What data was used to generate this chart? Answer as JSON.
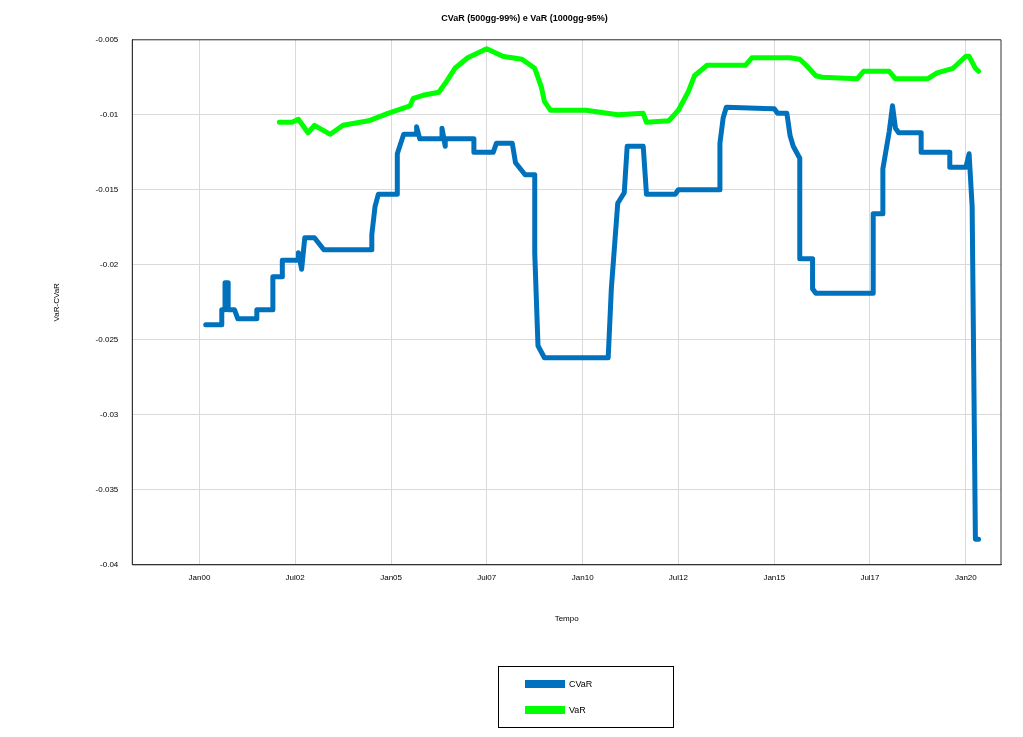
{
  "chart_data": {
    "type": "line",
    "title": "CVaR (500gg-99%) e VaR (1000gg-95%)",
    "xlabel": "Tempo",
    "ylabel": "VaR-CVaR",
    "xlim": [
      "1998-04",
      "2020-12"
    ],
    "xticks": [
      {
        "value": "2000-01",
        "label": "Jan00"
      },
      {
        "value": "2002-07",
        "label": "Jul02"
      },
      {
        "value": "2005-01",
        "label": "Jan05"
      },
      {
        "value": "2007-07",
        "label": "Jul07"
      },
      {
        "value": "2010-01",
        "label": "Jan10"
      },
      {
        "value": "2012-07",
        "label": "Jul12"
      },
      {
        "value": "2015-01",
        "label": "Jan15"
      },
      {
        "value": "2017-07",
        "label": "Jul17"
      },
      {
        "value": "2020-01",
        "label": "Jan20"
      }
    ],
    "ylim": [
      -0.04,
      -0.005
    ],
    "yticks": [
      -0.04,
      -0.035,
      -0.03,
      -0.025,
      -0.02,
      -0.015,
      -0.01,
      -0.005
    ],
    "grid": true,
    "legend": "bottom",
    "marker": "none",
    "line_style": "solid",
    "series": [
      {
        "name": "CVaR",
        "color": "#0072bd",
        "x": [
          "2000-03",
          "2000-08",
          "2000-08",
          "2000-09",
          "2000-09",
          "2000-10",
          "2000-10",
          "2000-12",
          "2001-01",
          "2001-07",
          "2001-07",
          "2001-12",
          "2001-12",
          "2002-03",
          "2002-03",
          "2002-08",
          "2002-08",
          "2002-09",
          "2002-10",
          "2003-01",
          "2003-04",
          "2003-05",
          "2004-07",
          "2004-07",
          "2004-08",
          "2004-09",
          "2005-03",
          "2005-03",
          "2005-05",
          "2005-09",
          "2005-09",
          "2005-10",
          "2006-05",
          "2006-05",
          "2006-06",
          "2006-06",
          "2007-03",
          "2007-03",
          "2007-09",
          "2007-10",
          "2008-03",
          "2008-04",
          "2008-07",
          "2008-10",
          "2008-10",
          "2008-11",
          "2009-01",
          "2010-09",
          "2010-10",
          "2010-12",
          "2011-02",
          "2011-03",
          "2011-08",
          "2011-09",
          "2012-06",
          "2012-07",
          "2013-08",
          "2013-08",
          "2013-09",
          "2013-10",
          "2015-01",
          "2015-02",
          "2015-05",
          "2015-06",
          "2015-07",
          "2015-09",
          "2015-09",
          "2016-01",
          "2016-01",
          "2016-02",
          "2017-08",
          "2017-08",
          "2017-11",
          "2017-11",
          "2018-01",
          "2018-02",
          "2018-03",
          "2018-04",
          "2018-11",
          "2018-11",
          "2019-08",
          "2019-08",
          "2020-01",
          "2020-02",
          "2020-03",
          "2020-04",
          "2020-05"
        ],
        "values": [
          -0.024,
          -0.024,
          -0.023,
          -0.023,
          -0.0212,
          -0.0212,
          -0.023,
          -0.023,
          -0.0236,
          -0.0236,
          -0.023,
          -0.023,
          -0.0208,
          -0.0208,
          -0.0197,
          -0.0197,
          -0.0192,
          -0.0203,
          -0.0182,
          -0.0182,
          -0.019,
          -0.019,
          -0.019,
          -0.018,
          -0.0161,
          -0.0153,
          -0.0153,
          -0.0126,
          -0.0113,
          -0.0113,
          -0.0108,
          -0.0116,
          -0.0116,
          -0.0109,
          -0.0121,
          -0.0116,
          -0.0116,
          -0.0125,
          -0.0125,
          -0.0119,
          -0.0119,
          -0.0132,
          -0.014,
          -0.014,
          -0.0192,
          -0.0254,
          -0.0262,
          -0.0262,
          -0.0216,
          -0.0159,
          -0.0152,
          -0.0121,
          -0.0121,
          -0.0153,
          -0.0153,
          -0.015,
          -0.015,
          -0.0119,
          -0.0102,
          -0.0095,
          -0.0096,
          -0.0099,
          -0.0099,
          -0.0114,
          -0.0121,
          -0.0129,
          -0.0196,
          -0.0196,
          -0.0216,
          -0.0219,
          -0.0219,
          -0.0166,
          -0.0166,
          -0.0136,
          -0.0111,
          -0.0094,
          -0.0109,
          -0.0112,
          -0.0112,
          -0.0125,
          -0.0125,
          -0.0135,
          -0.0135,
          -0.0126,
          -0.0161,
          -0.0383,
          -0.0383
        ]
      },
      {
        "name": "VaR",
        "color": "#00ff00",
        "x": [
          "2002-02",
          "2002-06",
          "2002-08",
          "2002-11",
          "2003-01",
          "2003-06",
          "2003-10",
          "2004-06",
          "2004-12",
          "2005-07",
          "2005-08",
          "2005-11",
          "2006-04",
          "2006-06",
          "2006-09",
          "2007-01",
          "2007-07",
          "2007-12",
          "2008-06",
          "2008-10",
          "2008-12",
          "2009-01",
          "2009-03",
          "2010-02",
          "2010-12",
          "2011-08",
          "2011-09",
          "2012-04",
          "2012-07",
          "2012-10",
          "2012-12",
          "2013-04",
          "2014-04",
          "2014-06",
          "2015-06",
          "2015-09",
          "2015-11",
          "2016-02",
          "2016-04",
          "2017-03",
          "2017-05",
          "2018-01",
          "2018-03",
          "2019-01",
          "2019-04",
          "2019-09",
          "2020-01",
          "2020-02",
          "2020-04",
          "2020-05"
        ],
        "values": [
          -0.0105,
          -0.0105,
          -0.0103,
          -0.0112,
          -0.0107,
          -0.0113,
          -0.0107,
          -0.0104,
          -0.0099,
          -0.0094,
          -0.0089,
          -0.0087,
          -0.0085,
          -0.0079,
          -0.0069,
          -0.0062,
          -0.0056,
          -0.0061,
          -0.0063,
          -0.0069,
          -0.0081,
          -0.0091,
          -0.0097,
          -0.0097,
          -0.01,
          -0.0099,
          -0.0105,
          -0.0104,
          -0.0097,
          -0.0085,
          -0.0074,
          -0.0067,
          -0.0067,
          -0.0062,
          -0.0062,
          -0.0063,
          -0.0067,
          -0.0074,
          -0.0075,
          -0.0076,
          -0.0071,
          -0.0071,
          -0.0076,
          -0.0076,
          -0.0072,
          -0.0069,
          -0.0061,
          -0.0061,
          -0.0069,
          -0.0071
        ]
      }
    ]
  }
}
